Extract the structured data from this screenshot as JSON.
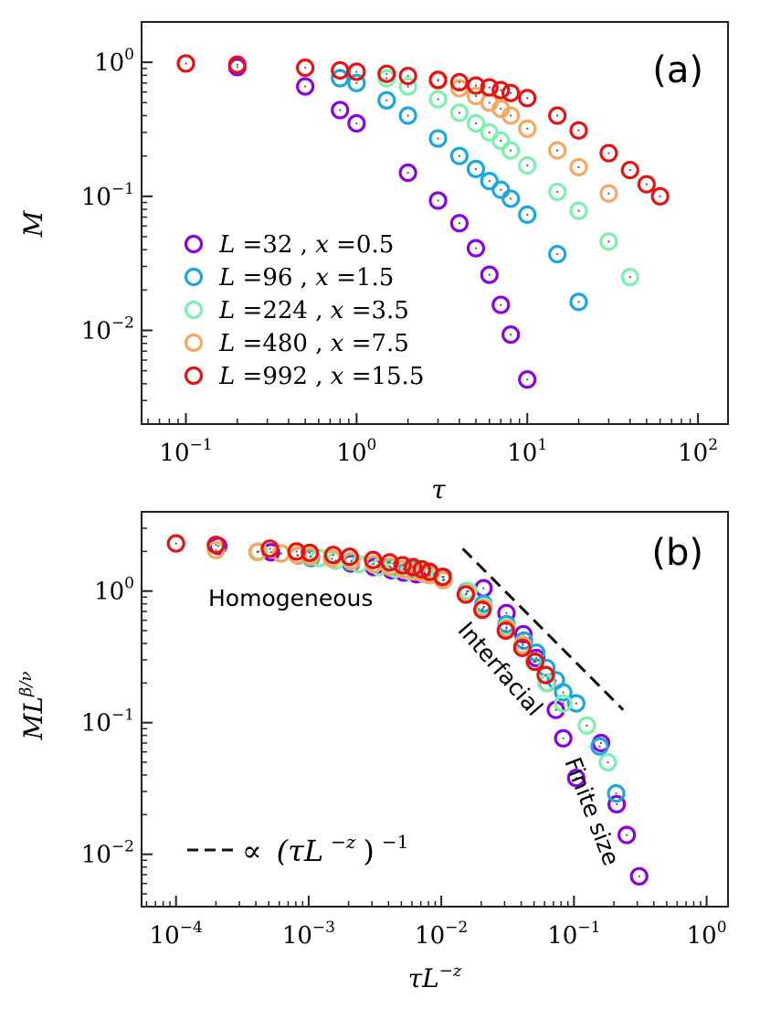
{
  "series_colors": [
    "#8a00e6",
    "#1aa7e0",
    "#7df0b0",
    "#f7a860",
    "#e51414"
  ],
  "chart_data": [
    {
      "type": "scatter",
      "panel_label": "(a)",
      "xscale": "log",
      "yscale": "log",
      "xlim": [
        0.055,
        150
      ],
      "ylim": [
        0.002,
        2.0
      ],
      "xlabel": "τ",
      "ylabel": "M",
      "xticks": [
        {
          "base": "10",
          "exp": "−1",
          "value": 0.1
        },
        {
          "base": "10",
          "exp": "0",
          "value": 1
        },
        {
          "base": "10",
          "exp": "1",
          "value": 10
        },
        {
          "base": "10",
          "exp": "2",
          "value": 100
        }
      ],
      "yticks": [
        {
          "base": "10",
          "exp": "0",
          "value": 1
        },
        {
          "base": "10",
          "exp": "−1",
          "value": 0.1
        },
        {
          "base": "10",
          "exp": "−2",
          "value": 0.01
        }
      ],
      "legend_position": "lower-left",
      "series": [
        {
          "L": "32",
          "x": "0.5",
          "points": [
            [
              0.2,
              0.92
            ],
            [
              0.5,
              0.66
            ],
            [
              0.8,
              0.44
            ],
            [
              1.0,
              0.35
            ],
            [
              2.0,
              0.15
            ],
            [
              3.0,
              0.093
            ],
            [
              4.0,
              0.063
            ],
            [
              5.0,
              0.041
            ],
            [
              6.0,
              0.026
            ],
            [
              7.0,
              0.0155
            ],
            [
              8.0,
              0.0093
            ],
            [
              10.0,
              0.0043
            ]
          ]
        },
        {
          "L": "96",
          "x": "1.5",
          "points": [
            [
              0.8,
              0.76
            ],
            [
              1.0,
              0.7
            ],
            [
              1.5,
              0.52
            ],
            [
              2.0,
              0.4
            ],
            [
              3.0,
              0.27
            ],
            [
              4.0,
              0.2
            ],
            [
              5.0,
              0.16
            ],
            [
              6.0,
              0.13
            ],
            [
              7.0,
              0.112
            ],
            [
              8.0,
              0.096
            ],
            [
              10.0,
              0.073
            ],
            [
              15.0,
              0.037
            ],
            [
              20.0,
              0.0163
            ]
          ]
        },
        {
          "L": "224",
          "x": "3.5",
          "points": [
            [
              1.5,
              0.76
            ],
            [
              2.0,
              0.66
            ],
            [
              3.0,
              0.53
            ],
            [
              4.0,
              0.42
            ],
            [
              5.0,
              0.35
            ],
            [
              6.0,
              0.3
            ],
            [
              7.0,
              0.26
            ],
            [
              8.0,
              0.22
            ],
            [
              10.0,
              0.17
            ],
            [
              15.0,
              0.108
            ],
            [
              20.0,
              0.078
            ],
            [
              30.0,
              0.046
            ],
            [
              40.0,
              0.025
            ]
          ]
        },
        {
          "L": "480",
          "x": "7.5",
          "points": [
            [
              3.0,
              0.73
            ],
            [
              4.0,
              0.64
            ],
            [
              5.0,
              0.56
            ],
            [
              6.0,
              0.5
            ],
            [
              7.0,
              0.45
            ],
            [
              8.0,
              0.4
            ],
            [
              10.0,
              0.32
            ],
            [
              15.0,
              0.22
            ],
            [
              20.0,
              0.165
            ],
            [
              30.0,
              0.105
            ]
          ]
        },
        {
          "L": "992",
          "x": "15.5",
          "points": [
            [
              0.1,
              0.98
            ],
            [
              0.2,
              0.96
            ],
            [
              0.5,
              0.91
            ],
            [
              0.8,
              0.87
            ],
            [
              1.0,
              0.85
            ],
            [
              1.5,
              0.82
            ],
            [
              2.0,
              0.79
            ],
            [
              3.0,
              0.74
            ],
            [
              4.0,
              0.71
            ],
            [
              5.0,
              0.67
            ],
            [
              6.0,
              0.65
            ],
            [
              7.0,
              0.62
            ],
            [
              8.0,
              0.59
            ],
            [
              10.0,
              0.54
            ],
            [
              15.0,
              0.4
            ],
            [
              20.0,
              0.31
            ],
            [
              30.0,
              0.21
            ],
            [
              40.0,
              0.157
            ],
            [
              50.0,
              0.123
            ],
            [
              60.0,
              0.1
            ]
          ]
        }
      ]
    },
    {
      "type": "scatter",
      "panel_label": "(b)",
      "xscale": "log",
      "yscale": "log",
      "xlim": [
        5.5e-05,
        1.45
      ],
      "ylim": [
        0.004,
        4.0
      ],
      "xlabel": "τL^−z",
      "ylabel": "ML^β/ν",
      "xticks": [
        {
          "base": "10",
          "exp": "−4",
          "value": 0.0001
        },
        {
          "base": "10",
          "exp": "−3",
          "value": 0.001
        },
        {
          "base": "10",
          "exp": "−2",
          "value": 0.01
        },
        {
          "base": "10",
          "exp": "−1",
          "value": 0.1
        },
        {
          "base": "10",
          "exp": "0",
          "value": 1
        }
      ],
      "yticks": [
        {
          "base": "10",
          "exp": "0",
          "value": 1
        },
        {
          "base": "10",
          "exp": "−1",
          "value": 0.1
        },
        {
          "base": "10",
          "exp": "−2",
          "value": 0.01
        }
      ],
      "annotations": {
        "homogeneous": "Homogeneous",
        "interfacial": "Interfacial",
        "finite_size": "Finite size"
      },
      "guide_line": {
        "points": [
          [
            0.0145,
            2.1
          ],
          [
            0.235,
            0.125
          ]
        ],
        "label_prefix": "∝",
        "label_expr": "(τL",
        "label_exp": "−z",
        "label_close": ")",
        "label_pow": "−1"
      },
      "series": [
        {
          "L": "32",
          "x": "0.5",
          "points": [
            [
              0.000208,
              2.2
            ],
            [
              0.00052,
              1.97
            ],
            [
              0.00083,
              1.86
            ],
            [
              0.00104,
              1.8
            ],
            [
              0.00208,
              1.62
            ],
            [
              0.0031,
              1.52
            ],
            [
              0.0042,
              1.44
            ],
            [
              0.0052,
              1.38
            ],
            [
              0.0065,
              1.34
            ],
            [
              0.0208,
              1.05
            ],
            [
              0.031,
              0.68
            ],
            [
              0.0415,
              0.47
            ],
            [
              0.052,
              0.31
            ],
            [
              0.0625,
              0.2
            ],
            [
              0.073,
              0.125
            ],
            [
              0.083,
              0.076
            ],
            [
              0.104,
              0.038
            ],
            [
              0.16,
              0.07
            ],
            [
              0.21,
              0.024
            ],
            [
              0.25,
              0.014
            ],
            [
              0.31,
              0.0068
            ]
          ]
        },
        {
          "L": "96",
          "x": "1.5",
          "points": [
            [
              0.00104,
              1.78
            ],
            [
              0.00208,
              1.66
            ],
            [
              0.0031,
              1.6
            ],
            [
              0.0042,
              1.5
            ],
            [
              0.0062,
              1.45
            ],
            [
              0.008,
              1.4
            ],
            [
              0.0104,
              1.28
            ],
            [
              0.0156,
              1.0
            ],
            [
              0.0208,
              0.8
            ],
            [
              0.031,
              0.56
            ],
            [
              0.042,
              0.42
            ],
            [
              0.052,
              0.34
            ],
            [
              0.062,
              0.26
            ],
            [
              0.073,
              0.21
            ],
            [
              0.083,
              0.17
            ],
            [
              0.104,
              0.14
            ],
            [
              0.156,
              0.066
            ],
            [
              0.208,
              0.029
            ]
          ]
        },
        {
          "L": "224",
          "x": "3.5",
          "points": [
            [
              0.00042,
              2.0
            ],
            [
              0.00062,
              1.93
            ],
            [
              0.00083,
              1.87
            ],
            [
              0.0012,
              1.78
            ],
            [
              0.0016,
              1.7
            ],
            [
              0.0024,
              1.6
            ],
            [
              0.0034,
              1.52
            ],
            [
              0.0045,
              1.47
            ],
            [
              0.0058,
              1.41
            ],
            [
              0.0076,
              1.34
            ],
            [
              0.0105,
              1.22
            ],
            [
              0.016,
              1.0
            ],
            [
              0.021,
              0.76
            ],
            [
              0.031,
              0.53
            ],
            [
              0.041,
              0.39
            ],
            [
              0.05,
              0.29
            ],
            [
              0.062,
              0.2
            ],
            [
              0.083,
              0.14
            ],
            [
              0.125,
              0.095
            ],
            [
              0.18,
              0.05
            ]
          ]
        },
        {
          "L": "480",
          "x": "7.5",
          "points": [
            [
              0.0002,
              2.05
            ],
            [
              0.00041,
              1.98
            ],
            [
              0.00062,
              1.93
            ],
            [
              0.00082,
              1.87
            ],
            [
              0.00103,
              1.83
            ],
            [
              0.0015,
              1.76
            ],
            [
              0.0021,
              1.69
            ],
            [
              0.0031,
              1.6
            ],
            [
              0.0041,
              1.53
            ],
            [
              0.0052,
              1.47
            ],
            [
              0.0062,
              1.41
            ],
            [
              0.0072,
              1.37
            ],
            [
              0.0082,
              1.32
            ],
            [
              0.0103,
              1.21
            ],
            [
              0.0155,
              0.96
            ],
            [
              0.0206,
              0.74
            ],
            [
              0.031,
              0.52
            ],
            [
              0.041,
              0.39
            ]
          ]
        },
        {
          "L": "992",
          "x": "15.5",
          "points": [
            [
              0.0001,
              2.3
            ],
            [
              0.0002,
              2.24
            ],
            [
              0.00051,
              2.1
            ],
            [
              0.00081,
              2.0
            ],
            [
              0.00102,
              1.95
            ],
            [
              0.00153,
              1.88
            ],
            [
              0.00204,
              1.82
            ],
            [
              0.00306,
              1.72
            ],
            [
              0.00408,
              1.65
            ],
            [
              0.0051,
              1.57
            ],
            [
              0.00612,
              1.52
            ],
            [
              0.00714,
              1.46
            ],
            [
              0.00816,
              1.4
            ],
            [
              0.0102,
              1.28
            ],
            [
              0.0153,
              0.94
            ],
            [
              0.0204,
              0.72
            ],
            [
              0.0306,
              0.5
            ],
            [
              0.0408,
              0.37
            ],
            [
              0.051,
              0.29
            ],
            [
              0.0612,
              0.23
            ]
          ]
        }
      ]
    }
  ]
}
